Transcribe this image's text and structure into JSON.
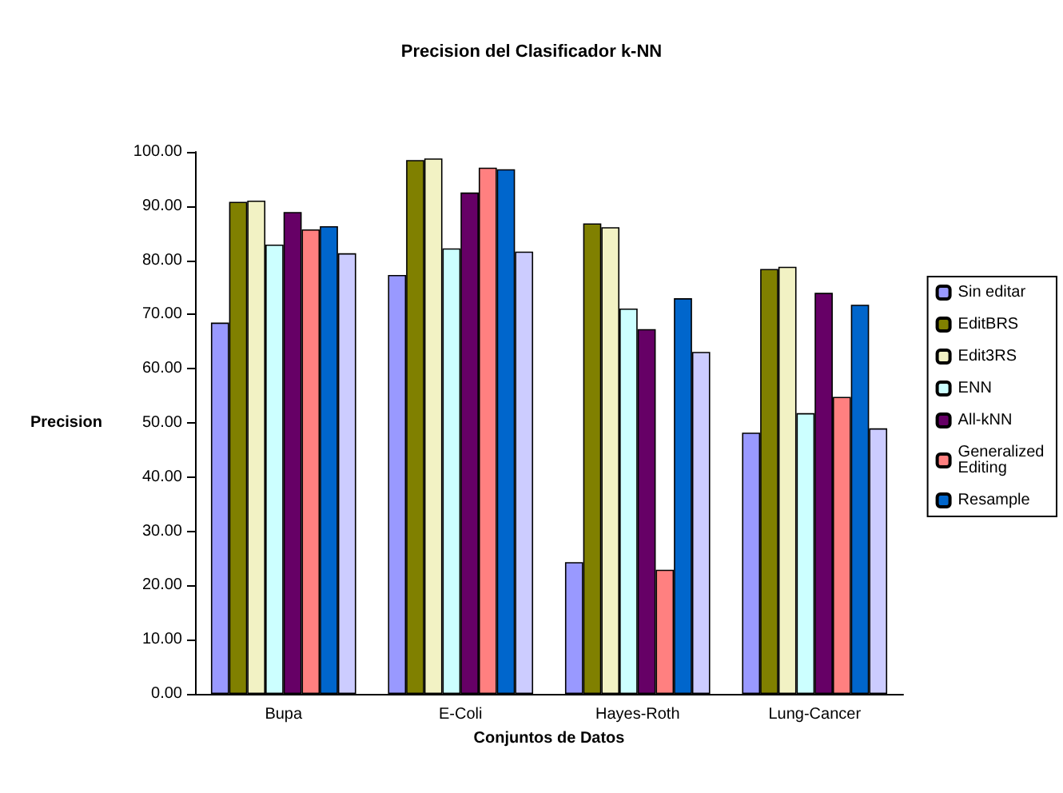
{
  "chart_data": {
    "type": "bar",
    "title": "Precision del Clasificador k-NN",
    "xlabel": "Conjuntos de Datos",
    "ylabel": "Precision",
    "categories": [
      "Bupa",
      "E-Coli",
      "Hayes-Roth",
      "Lung-Cancer"
    ],
    "series": [
      {
        "name": "Sin editar",
        "color": "#9999ff",
        "values": [
          68.5,
          77.3,
          24.3,
          48.2
        ]
      },
      {
        "name": "EditBRS",
        "color": "#808000",
        "values": [
          90.8,
          98.5,
          86.8,
          78.4
        ]
      },
      {
        "name": "Edit3RS",
        "color": "#f2f2c4",
        "values": [
          91,
          98.8,
          86.1,
          78.8
        ]
      },
      {
        "name": "ENN",
        "color": "#ccffff",
        "values": [
          82.9,
          82.2,
          71.1,
          51.8
        ]
      },
      {
        "name": "All-kNN",
        "color": "#660066",
        "values": [
          88.9,
          92.5,
          67.3,
          74
        ]
      },
      {
        "name": "Generalized Editing",
        "color": "#ff8080",
        "values": [
          85.7,
          97.1,
          22.9,
          54.8
        ]
      },
      {
        "name": "Resample",
        "color": "#0066cc",
        "values": [
          86.3,
          96.8,
          73,
          71.8
        ]
      },
      {
        "color": "#ccccff",
        "values": [
          81.3,
          81.6,
          63.1,
          49
        ]
      }
    ],
    "ylim": [
      0,
      100
    ],
    "yticks": [
      {
        "value": 0,
        "label": "0.00"
      },
      {
        "value": 10,
        "label": "10.00"
      },
      {
        "value": 20,
        "label": "20.00"
      },
      {
        "value": 30,
        "label": "30.00"
      },
      {
        "value": 40,
        "label": "40.00"
      },
      {
        "value": 50,
        "label": "50.00"
      },
      {
        "value": 60,
        "label": "60.00"
      },
      {
        "value": 70,
        "label": "70.00"
      },
      {
        "value": 80,
        "label": "80.00"
      },
      {
        "value": 90,
        "label": "90.00"
      },
      {
        "value": 100,
        "label": "100.00"
      }
    ],
    "grid": false,
    "legend": "right"
  }
}
